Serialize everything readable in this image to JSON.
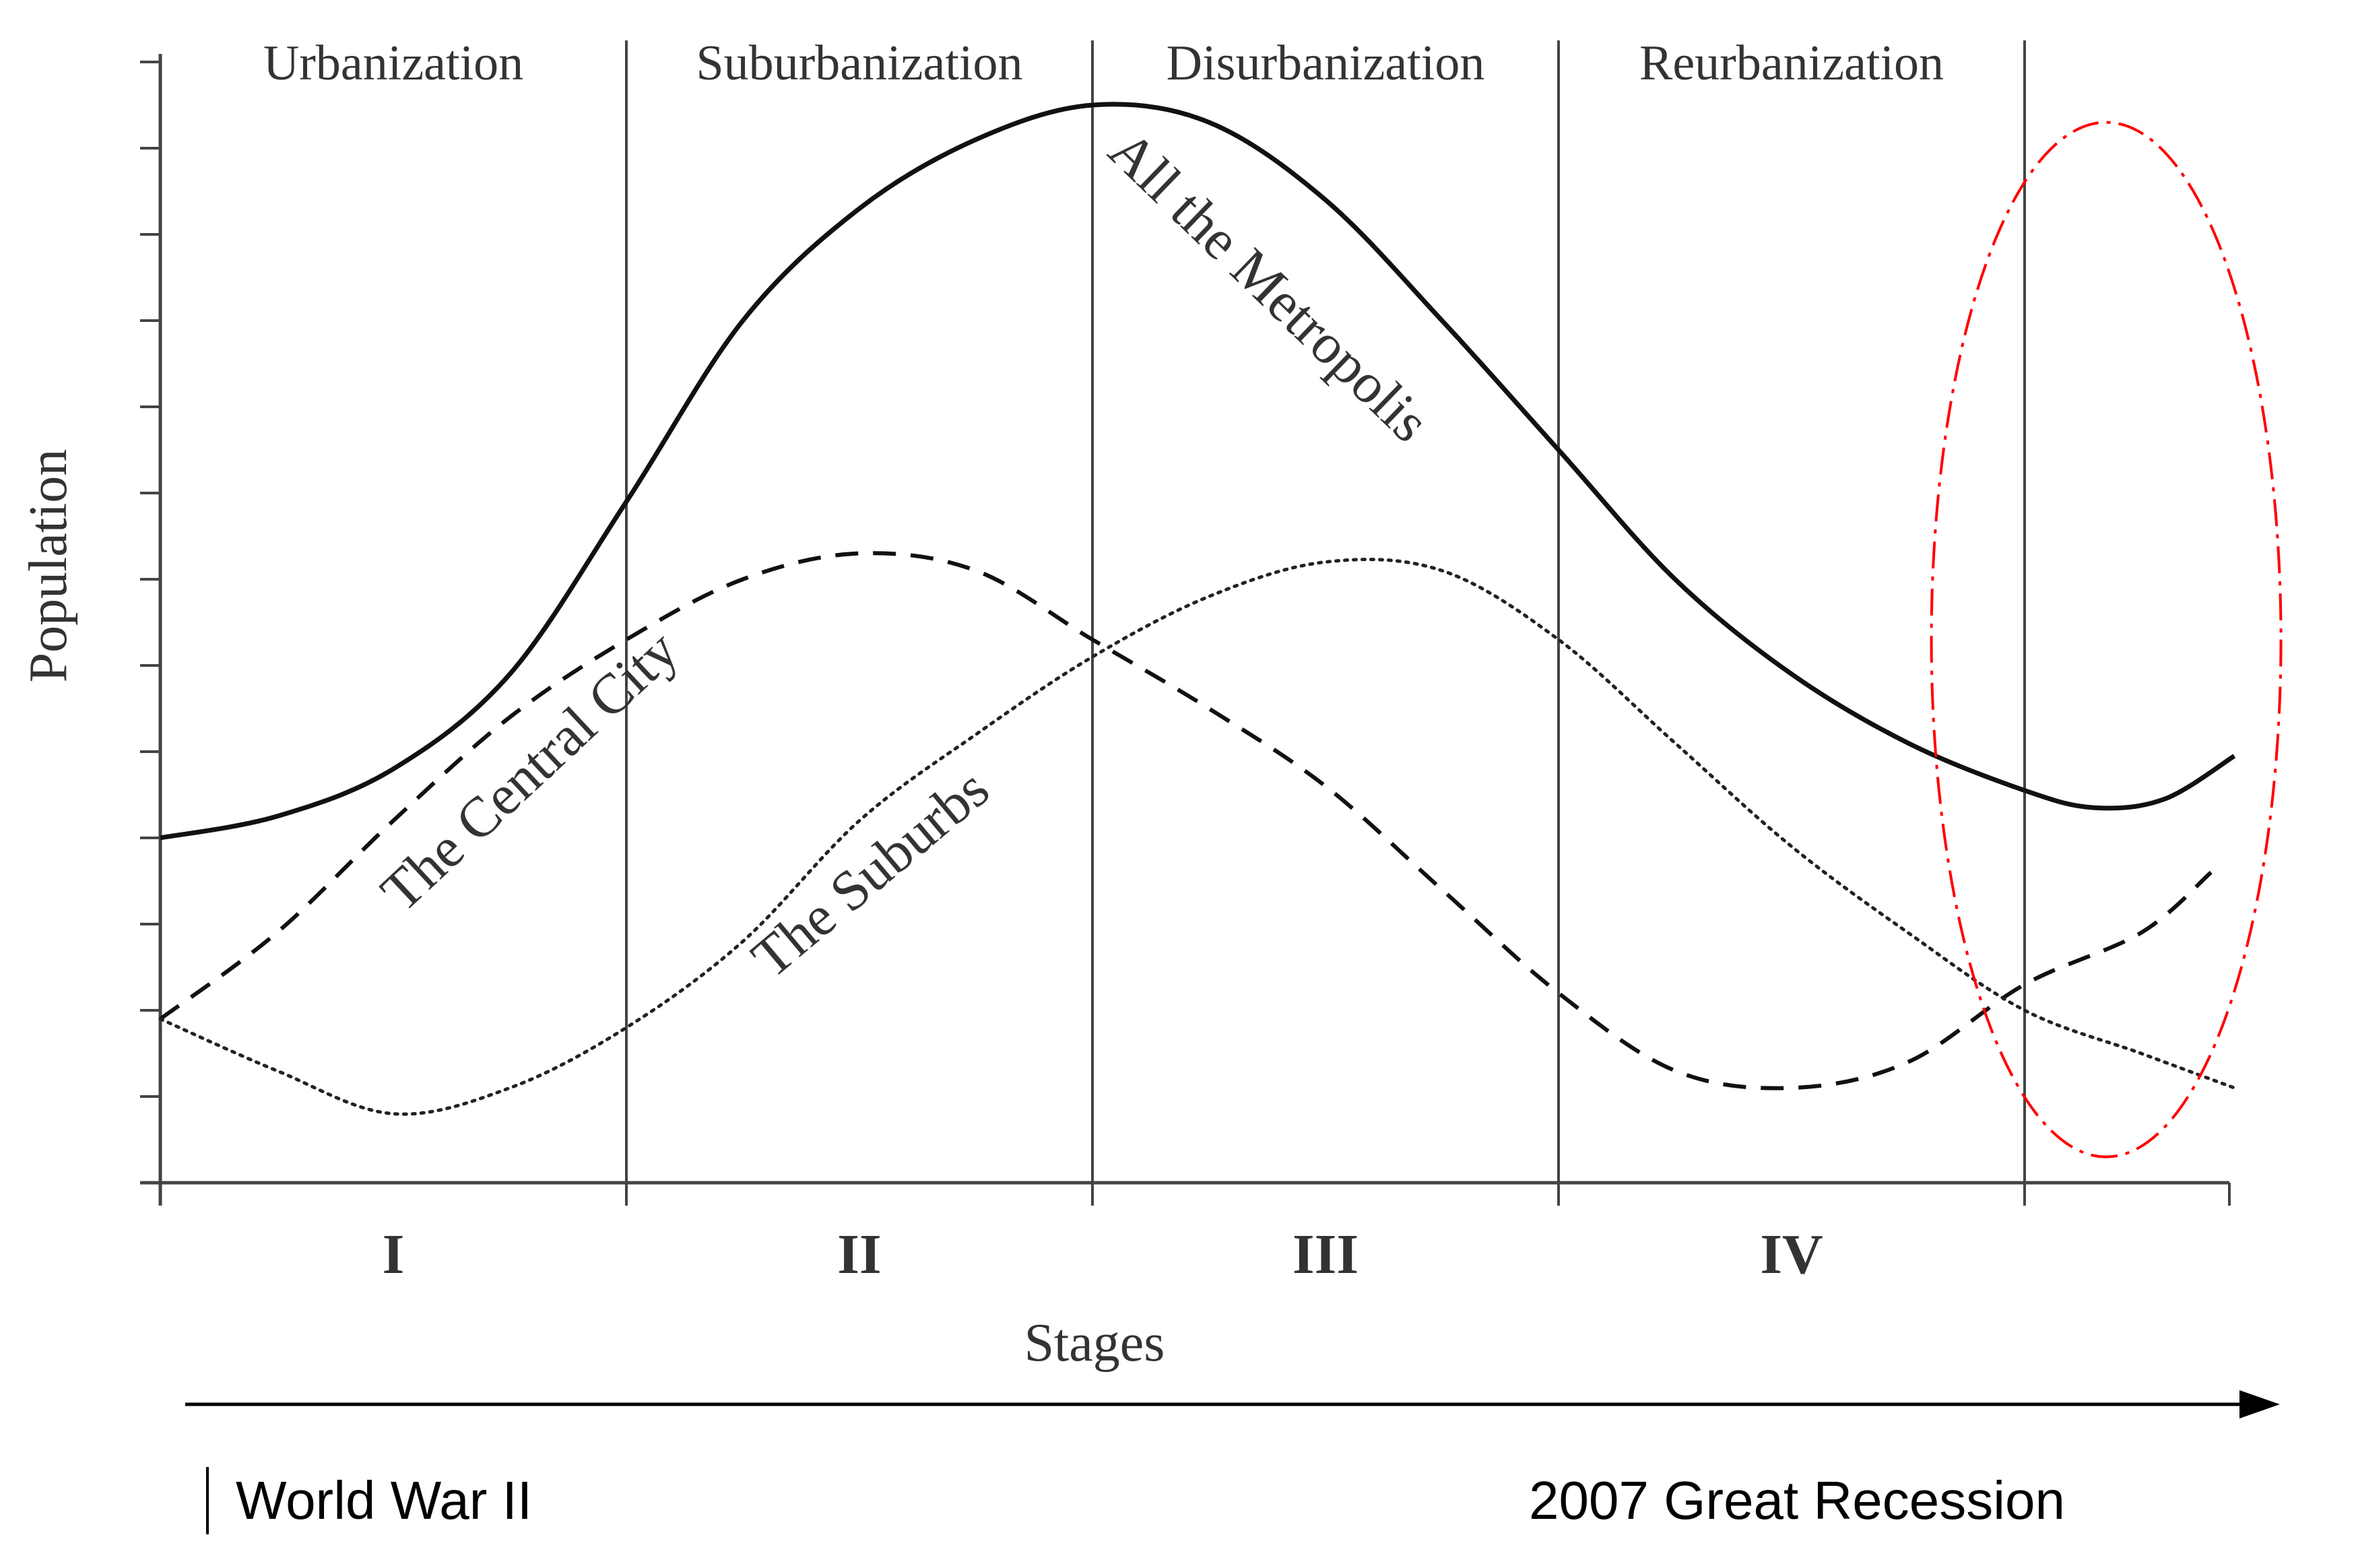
{
  "chart_data": {
    "type": "line",
    "title": "",
    "xlabel": "Stages",
    "ylabel": "Population",
    "xlim": [
      0,
      4.45
    ],
    "ylim": [
      0,
      13
    ],
    "grid": false,
    "yticks_count": 13,
    "stage_boundaries": [
      0,
      1,
      2,
      3,
      4
    ],
    "stage_names": [
      "Urbanization",
      "Suburbanization",
      "Disurbanization",
      "Reurbanization"
    ],
    "stage_numerals": [
      "I",
      "II",
      "III",
      "IV"
    ],
    "series": [
      {
        "name": "All the Metropolis",
        "style": "solid",
        "x": [
          0,
          0.25,
          0.5,
          0.75,
          1.0,
          1.25,
          1.5,
          1.75,
          2.0,
          2.25,
          2.5,
          2.75,
          3.0,
          3.25,
          3.5,
          3.75,
          4.0,
          4.15,
          4.3,
          4.45
        ],
        "y": [
          4.0,
          4.25,
          4.8,
          5.9,
          7.9,
          10.0,
          11.3,
          12.1,
          12.5,
          12.3,
          11.4,
          10.0,
          8.5,
          7.0,
          5.9,
          5.1,
          4.55,
          4.35,
          4.45,
          4.95
        ]
      },
      {
        "name": "The Central City",
        "style": "dashed",
        "x": [
          0,
          0.25,
          0.5,
          0.75,
          1.0,
          1.25,
          1.5,
          1.75,
          2.0,
          2.25,
          2.5,
          2.75,
          3.0,
          3.25,
          3.5,
          3.75,
          4.0,
          4.25,
          4.4
        ],
        "y": [
          1.9,
          2.9,
          4.2,
          5.4,
          6.3,
          7.0,
          7.3,
          7.1,
          6.3,
          5.5,
          4.6,
          3.4,
          2.2,
          1.3,
          1.1,
          1.4,
          2.3,
          2.9,
          3.6
        ]
      },
      {
        "name": "The Suburbs",
        "style": "dotted",
        "x": [
          0,
          0.25,
          0.5,
          0.75,
          1.0,
          1.25,
          1.5,
          1.75,
          2.0,
          2.25,
          2.5,
          2.75,
          3.0,
          3.25,
          3.5,
          3.75,
          4.0,
          4.25,
          4.45
        ],
        "y": [
          1.9,
          1.3,
          0.8,
          1.1,
          1.8,
          2.8,
          4.2,
          5.2,
          6.1,
          6.8,
          7.2,
          7.1,
          6.3,
          5.1,
          3.9,
          2.9,
          2.0,
          1.5,
          1.1
        ]
      }
    ],
    "annotations": {
      "highlight_ellipse": {
        "color": "#ff0000",
        "style": "dash-dot",
        "x_range": [
          3.8,
          4.55
        ],
        "y_range": [
          0.3,
          12.3
        ]
      },
      "timeline_start_label": "World War II",
      "timeline_end_label": "2007 Great Recession"
    }
  }
}
